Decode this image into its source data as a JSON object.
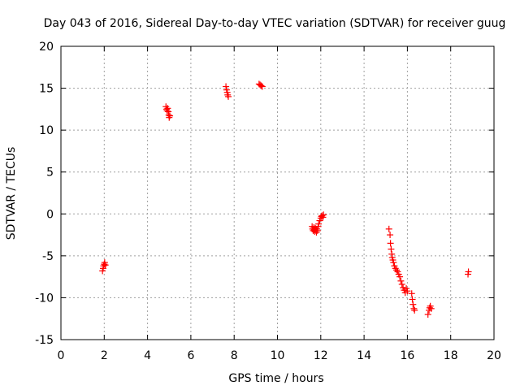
{
  "chart_data": {
    "type": "scatter",
    "title": "Day 043 of 2016, Sidereal Day-to-day VTEC variation (SDTVAR) for receiver guug",
    "xlabel": "GPS time / hours",
    "ylabel": "SDTVAR / TECUs",
    "xlim": [
      0,
      20
    ],
    "ylim": [
      -15,
      20
    ],
    "xticks": [
      0,
      2,
      4,
      6,
      8,
      10,
      12,
      14,
      16,
      18,
      20
    ],
    "yticks": [
      -15,
      -10,
      -5,
      0,
      5,
      10,
      15,
      20
    ],
    "grid": true,
    "marker": "+",
    "color": "#ff0000",
    "series": [
      {
        "name": "SDTVAR",
        "x": [
          1.92,
          1.95,
          1.97,
          2.0,
          2.02,
          2.05,
          4.85,
          4.88,
          4.9,
          4.93,
          4.96,
          4.98,
          5.0,
          5.03,
          7.62,
          7.65,
          7.68,
          7.7,
          7.73,
          9.15,
          9.2,
          9.25,
          9.3,
          11.6,
          11.62,
          11.65,
          11.68,
          11.7,
          11.72,
          11.75,
          11.78,
          11.8,
          11.82,
          11.85,
          11.88,
          11.9,
          11.95,
          12.0,
          12.03,
          12.06,
          12.1,
          12.13,
          15.15,
          15.2,
          15.22,
          15.25,
          15.28,
          15.3,
          15.33,
          15.36,
          15.4,
          15.45,
          15.5,
          15.55,
          15.6,
          15.65,
          15.7,
          15.75,
          15.8,
          15.85,
          15.9,
          15.95,
          16.0,
          16.2,
          16.23,
          16.26,
          16.3,
          16.33,
          16.95,
          17.0,
          17.03,
          17.06,
          17.1,
          18.8,
          18.82
        ],
        "y": [
          -6.8,
          -6.5,
          -6.2,
          -6.0,
          -5.8,
          -6.1,
          12.8,
          12.5,
          12.3,
          12.6,
          12.2,
          11.8,
          11.5,
          11.7,
          15.2,
          14.8,
          14.5,
          14.2,
          14.0,
          15.5,
          15.4,
          15.3,
          15.2,
          -1.5,
          -1.8,
          -2.0,
          -1.6,
          -1.9,
          -2.1,
          -1.7,
          -2.0,
          -2.2,
          -1.8,
          -2.0,
          -1.5,
          -1.2,
          -0.8,
          -0.5,
          -0.3,
          -0.2,
          -0.4,
          -0.1,
          -1.8,
          -2.5,
          -3.5,
          -4.2,
          -4.8,
          -5.2,
          -5.5,
          -5.8,
          -6.2,
          -6.5,
          -6.7,
          -6.9,
          -7.2,
          -7.5,
          -8.0,
          -8.4,
          -8.8,
          -9.1,
          -9.4,
          -8.9,
          -9.2,
          -9.5,
          -10.2,
          -10.8,
          -11.3,
          -11.5,
          -12.0,
          -11.5,
          -11.2,
          -11.0,
          -11.3,
          -7.2,
          -6.9
        ]
      }
    ]
  }
}
